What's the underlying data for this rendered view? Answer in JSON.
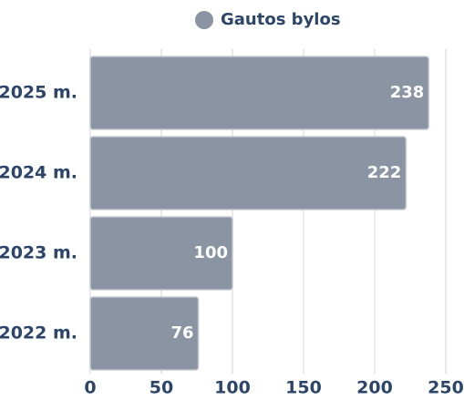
{
  "chart_data": {
    "type": "hbar",
    "categories": [
      "2025 m.",
      "2024 m.",
      "2023 m.",
      "2022 m."
    ],
    "series": [
      {
        "name": "Gautos bylos",
        "color": "#8a94a3",
        "values": [
          238,
          222,
          100,
          76
        ]
      }
    ],
    "xlim": [
      0,
      250
    ],
    "xticks": [
      0,
      50,
      100,
      150,
      200,
      250
    ],
    "grid": true,
    "legend": "top"
  }
}
